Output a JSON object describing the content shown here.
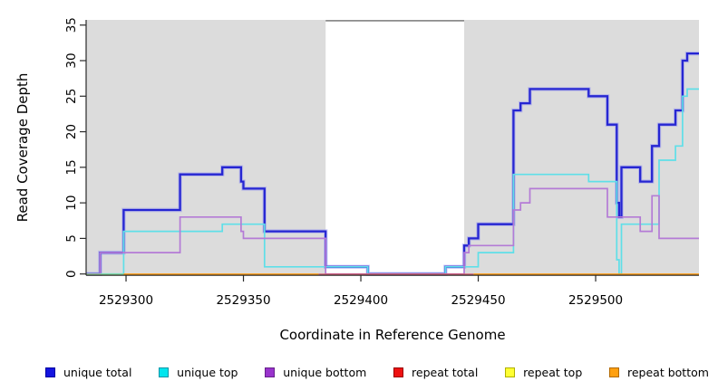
{
  "chart_data": {
    "type": "line",
    "subtype": "step-coverage",
    "title": "",
    "xlabel": "Coordinate in Reference Genome",
    "ylabel": "Read Coverage Depth",
    "xlim": [
      2529283,
      2529544
    ],
    "ylim": [
      0,
      35
    ],
    "x_ticks": [
      2529300,
      2529350,
      2529400,
      2529450,
      2529500
    ],
    "x_tick_labels": [
      "2529300",
      "2529350",
      "2529400",
      "2529450",
      "2529500"
    ],
    "y_ticks": [
      0,
      5,
      10,
      15,
      20,
      25,
      30,
      35
    ],
    "grid": false,
    "panel_bg": "#dcdcdc",
    "gap_region": {
      "from": 2529385,
      "to": 2529444,
      "fill": "#ffffff",
      "top_border_color": "#8c8c8c",
      "note": "white no-data band with dark gray cap line at top"
    },
    "series": [
      {
        "name": "unique total",
        "color": "#2626d2",
        "halo_color": "#9b9bf0",
        "width": 2.3,
        "x_end": 2529544,
        "steps": [
          [
            2529283,
            0
          ],
          [
            2529289,
            3
          ],
          [
            2529299,
            9
          ],
          [
            2529323,
            14
          ],
          [
            2529341,
            15
          ],
          [
            2529349,
            13
          ],
          [
            2529350,
            12
          ],
          [
            2529359,
            6
          ],
          [
            2529385,
            1
          ],
          [
            2529403,
            0
          ],
          [
            2529436,
            1
          ],
          [
            2529444,
            4
          ],
          [
            2529446,
            5
          ],
          [
            2529450,
            7
          ],
          [
            2529465,
            23
          ],
          [
            2529468,
            24
          ],
          [
            2529472,
            26
          ],
          [
            2529497,
            25
          ],
          [
            2529505,
            21
          ],
          [
            2529509,
            10
          ],
          [
            2529510,
            8
          ],
          [
            2529511,
            15
          ],
          [
            2529519,
            13
          ],
          [
            2529524,
            18
          ],
          [
            2529527,
            21
          ],
          [
            2529534,
            23
          ],
          [
            2529537,
            30
          ],
          [
            2529539,
            31
          ]
        ]
      },
      {
        "name": "unique top",
        "color": "#5fdfe8",
        "width": 1.7,
        "x_end": 2529544,
        "steps": [
          [
            2529283,
            0
          ],
          [
            2529299,
            6
          ],
          [
            2529341,
            7
          ],
          [
            2529359,
            1
          ],
          [
            2529403,
            0
          ],
          [
            2529436,
            1
          ],
          [
            2529450,
            3
          ],
          [
            2529465,
            14
          ],
          [
            2529497,
            13
          ],
          [
            2529509,
            2
          ],
          [
            2529510,
            0
          ],
          [
            2529511,
            7
          ],
          [
            2529527,
            16
          ],
          [
            2529534,
            18
          ],
          [
            2529537,
            25
          ],
          [
            2529539,
            26
          ]
        ]
      },
      {
        "name": "unique bottom",
        "color": "#b47bd6",
        "width": 1.7,
        "x_end": 2529544,
        "steps": [
          [
            2529283,
            0
          ],
          [
            2529289,
            3
          ],
          [
            2529323,
            8
          ],
          [
            2529349,
            6
          ],
          [
            2529350,
            5
          ],
          [
            2529385,
            0
          ],
          [
            2529444,
            3
          ],
          [
            2529446,
            4
          ],
          [
            2529465,
            9
          ],
          [
            2529468,
            10
          ],
          [
            2529472,
            12
          ],
          [
            2529505,
            8
          ],
          [
            2529519,
            6
          ],
          [
            2529524,
            11
          ],
          [
            2529527,
            5
          ]
        ]
      }
    ],
    "baseline_series": [
      {
        "name": "repeat top",
        "color": "#8ed88e",
        "width": 1.6,
        "value": 0,
        "segments": [
          [
            2529283,
            2529299
          ]
        ]
      },
      {
        "name": "repeat total",
        "color": "#d65f72",
        "width": 1.8,
        "value": 0,
        "segments": [
          [
            2529382,
            2529448
          ]
        ]
      },
      {
        "name": "repeat bottom",
        "color": "#ff9c12",
        "width": 2.2,
        "value": 0,
        "segments": [
          [
            2529299,
            2529382
          ],
          [
            2529448,
            2529544
          ]
        ]
      }
    ],
    "legend": [
      {
        "label": "unique total",
        "fill": "#1414e0",
        "border": "#0000a0"
      },
      {
        "label": "unique top",
        "fill": "#00e5ee",
        "border": "#0095a8"
      },
      {
        "label": "unique bottom",
        "fill": "#9933cc",
        "border": "#66208a"
      },
      {
        "label": "repeat total",
        "fill": "#ee1111",
        "border": "#990000"
      },
      {
        "label": "repeat top",
        "fill": "#ffff33",
        "border": "#b0b000"
      },
      {
        "label": "repeat bottom",
        "fill": "#ffa010",
        "border": "#b26a00"
      }
    ],
    "axis_color": "#2a2a2a"
  },
  "layout_text": {
    "xlabel": "Coordinate in Reference Genome",
    "ylabel": "Read Coverage Depth"
  }
}
